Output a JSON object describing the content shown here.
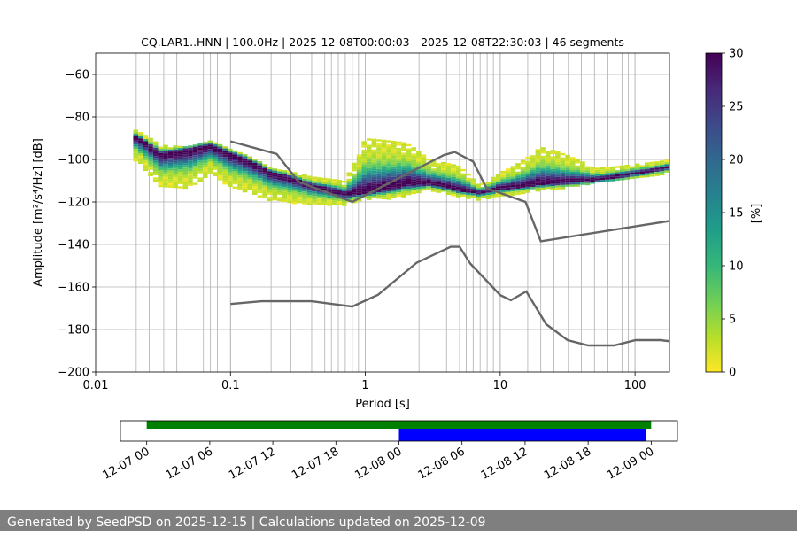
{
  "footer": {
    "generated_prefix": "Generated by SeedPSD on ",
    "generated_date": "2025-12-15",
    "separator": " | ",
    "updated_prefix": "Calculations updated on ",
    "updated_date": "2025-12-09"
  },
  "chart_data": [
    {
      "type": "heatmap",
      "title": "CQ.LAR1..HNN | 100.0Hz | 2025-12-08T00:00:03 - 2025-12-08T22:30:03 | 46 segments",
      "xlabel": "Period [s]",
      "ylabel": "Amplitude [m²/s⁴/Hz] [dB]",
      "x_scale": "log",
      "xlim": [
        0.01,
        180
      ],
      "ylim": [
        -200,
        -50
      ],
      "x_ticks": [
        {
          "value": 0.01,
          "label": "0.01"
        },
        {
          "value": 0.1,
          "label": "0.1"
        },
        {
          "value": 1,
          "label": "1"
        },
        {
          "value": 10,
          "label": "10"
        },
        {
          "value": 100,
          "label": "100"
        }
      ],
      "y_ticks": [
        -60,
        -80,
        -100,
        -120,
        -140,
        -160,
        -180,
        -200
      ],
      "grid": true,
      "grid_periods": [
        0.02,
        0.025,
        0.032,
        0.04,
        0.05,
        0.063,
        0.071,
        0.08,
        0.1,
        0.2,
        0.28,
        0.4,
        0.5,
        0.56,
        0.63,
        0.71,
        0.8,
        0.89,
        2,
        2.5,
        4,
        5,
        5.6,
        6.3,
        7.1,
        8,
        8.9,
        10,
        16,
        20,
        25,
        32,
        40,
        50,
        63,
        71,
        80,
        89,
        100
      ],
      "colorbar": {
        "label": "[%]",
        "range": [
          0,
          30
        ],
        "ticks": [
          0,
          5,
          10,
          15,
          20,
          25,
          30
        ],
        "colormap": "viridis_r",
        "colors": [
          "#fde725",
          "#b5de2b",
          "#6ece58",
          "#35b779",
          "#1f9e89",
          "#26828e",
          "#31688e",
          "#3e4989",
          "#482878",
          "#440154"
        ]
      },
      "mode_curve": {
        "period": [
          0.02,
          0.03,
          0.05,
          0.07,
          0.1,
          0.2,
          0.4,
          0.7,
          1,
          2,
          3,
          5,
          7,
          10,
          20,
          50,
          100,
          180
        ],
        "db": [
          -89,
          -97,
          -95,
          -93,
          -97,
          -106,
          -112,
          -116,
          -115,
          -111,
          -111,
          -114,
          -115,
          -113,
          -111,
          -109,
          -106,
          -103
        ]
      },
      "spread_band": {
        "period": [
          0.02,
          0.03,
          0.05,
          0.07,
          0.1,
          0.2,
          0.4,
          0.7,
          1,
          2,
          3,
          5,
          7,
          10,
          20,
          50,
          100,
          180
        ],
        "upper_db": [
          -86,
          -93,
          -94,
          -91,
          -95,
          -104,
          -108,
          -110,
          -90,
          -92,
          -100,
          -103,
          -112,
          -106,
          -94,
          -104,
          -102,
          -100
        ],
        "lower_db": [
          -100,
          -113,
          -113,
          -106,
          -113,
          -119,
          -121,
          -121,
          -119,
          -117,
          -114,
          -117,
          -119,
          -117,
          -114,
          -111,
          -108,
          -106
        ]
      },
      "series": [
        {
          "name": "",
          "role": "high noise model",
          "color": "#666666",
          "x": [
            0.1,
            0.22,
            0.32,
            0.8,
            3.8,
            4.6,
            6.3,
            7.9,
            15.4,
            20,
            354.8
          ],
          "y": [
            -91.5,
            -97.4,
            -110.5,
            -120,
            -98,
            -96.5,
            -101,
            -113.5,
            -120,
            -138.5,
            -126
          ]
        },
        {
          "name": "",
          "role": "low noise model",
          "color": "#666666",
          "x": [
            0.1,
            0.17,
            0.4,
            0.8,
            1.24,
            2.4,
            4.3,
            5,
            6,
            10,
            12,
            15.6,
            21.9,
            31.6,
            45,
            70,
            101,
            154,
            328,
            600,
            10000
          ],
          "y": [
            -168,
            -166.7,
            -166.7,
            -169.2,
            -163.7,
            -148.6,
            -141.1,
            -141.1,
            -149,
            -163.8,
            -166.2,
            -162.1,
            -177.5,
            -185,
            -187.5,
            -187.5,
            -185,
            -185,
            -187.5,
            -184.4,
            -151.5
          ]
        }
      ]
    },
    {
      "type": "timeline",
      "title": "",
      "x_ticks": [
        "12-07 00",
        "12-07 06",
        "12-07 12",
        "12-07 18",
        "12-08 00",
        "12-08 06",
        "12-08 12",
        "12-08 18",
        "12-09 00"
      ],
      "x_range_hours": [
        -2.5,
        50.5
      ],
      "bars": [
        {
          "color": "green",
          "start_hour": 0,
          "end_hour": 48
        },
        {
          "color": "blue",
          "start_hour": 24,
          "end_hour": 47.5
        }
      ]
    }
  ]
}
